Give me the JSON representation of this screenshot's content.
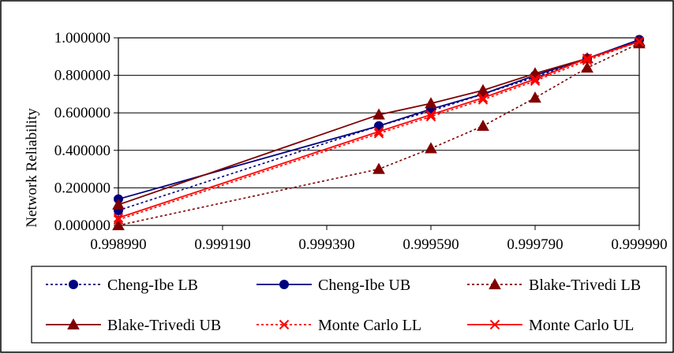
{
  "chart_data": {
    "type": "line",
    "ylabel": "Network Reliability",
    "xlabel": "",
    "title": "",
    "xlim": [
      0.99899,
      0.99999
    ],
    "ylim": [
      0.0,
      1.0
    ],
    "x_ticks": [
      "0.998990",
      "0.999190",
      "0.999390",
      "0.999590",
      "0.999790",
      "0.999990"
    ],
    "y_ticks": [
      "0.000000",
      "0.200000",
      "0.400000",
      "0.600000",
      "0.800000",
      "1.000000"
    ],
    "x_tick_values": [
      0.99899,
      0.99919,
      0.99939,
      0.99959,
      0.99979,
      0.99999
    ],
    "y_tick_values": [
      0.0,
      0.2,
      0.4,
      0.6,
      0.8,
      1.0
    ],
    "grid": "horizontal",
    "legend_position": "bottom",
    "x": [
      0.99899,
      0.99949,
      0.99959,
      0.99969,
      0.99979,
      0.99989,
      0.99999
    ],
    "series": [
      {
        "name": "Cheng-Ibe LB",
        "color": "#000080",
        "dash": "dotted",
        "marker": "circle",
        "values": [
          0.08,
          0.53,
          0.61,
          0.7,
          0.79,
          0.89,
          0.99
        ]
      },
      {
        "name": "Cheng-Ibe UB",
        "color": "#000080",
        "dash": "solid",
        "marker": "circle",
        "values": [
          0.14,
          0.53,
          0.62,
          0.7,
          0.8,
          0.89,
          0.99
        ]
      },
      {
        "name": "Blake-Trivedi LB",
        "color": "#800000",
        "dash": "dotted",
        "marker": "triangle",
        "values": [
          0.0,
          0.3,
          0.41,
          0.53,
          0.68,
          0.84,
          0.97
        ]
      },
      {
        "name": "Blake-Trivedi UB",
        "color": "#800000",
        "dash": "solid",
        "marker": "triangle",
        "values": [
          0.11,
          0.59,
          0.65,
          0.72,
          0.81,
          0.89,
          0.98
        ]
      },
      {
        "name": "Monte Carlo LL",
        "color": "#ff0000",
        "dash": "dotted",
        "marker": "x",
        "values": [
          0.03,
          0.49,
          0.58,
          0.67,
          0.77,
          0.88,
          0.98
        ]
      },
      {
        "name": "Monte Carlo UL",
        "color": "#ff0000",
        "dash": "solid",
        "marker": "x",
        "values": [
          0.04,
          0.5,
          0.59,
          0.68,
          0.78,
          0.89,
          0.98
        ]
      }
    ]
  }
}
